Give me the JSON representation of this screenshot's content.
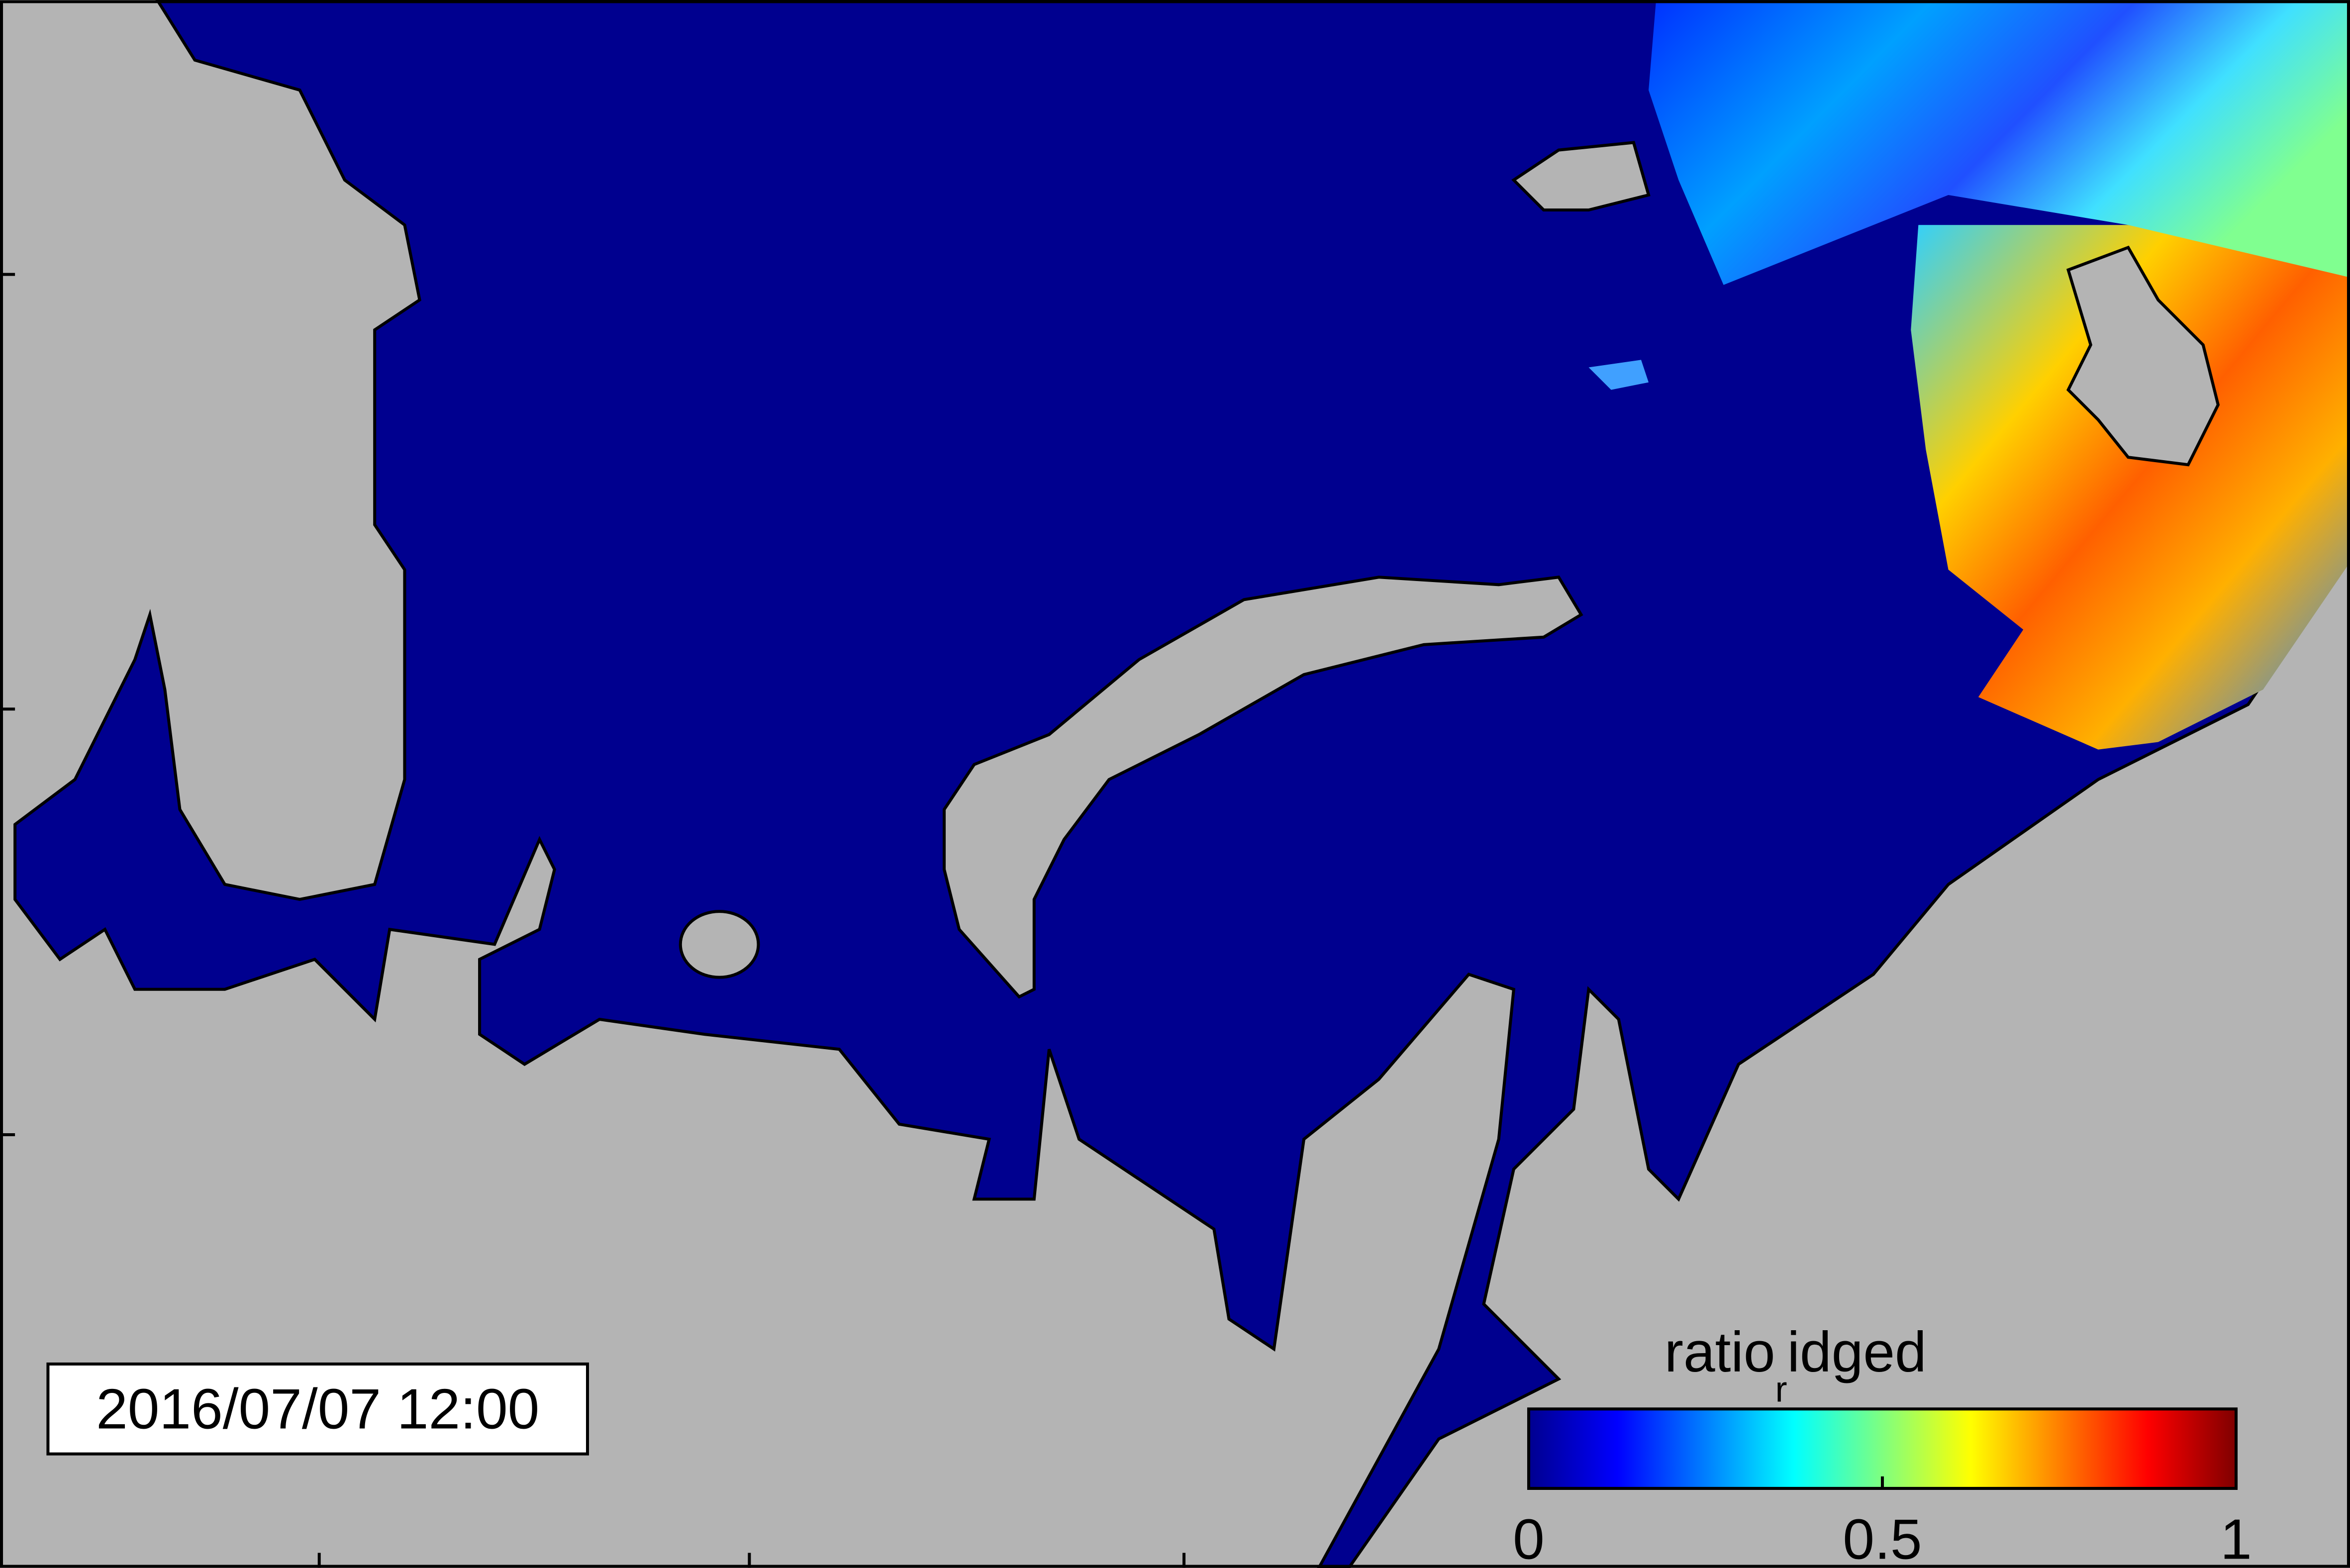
{
  "timestamp": "2016/07/07 12:00",
  "colorbar": {
    "label": {
      "base": "ratio",
      "subscript": "r",
      "rest": "idged"
    },
    "lim": [
      0,
      1
    ],
    "ticks": [
      0,
      0.5,
      1
    ],
    "colormap": "jet"
  }
}
